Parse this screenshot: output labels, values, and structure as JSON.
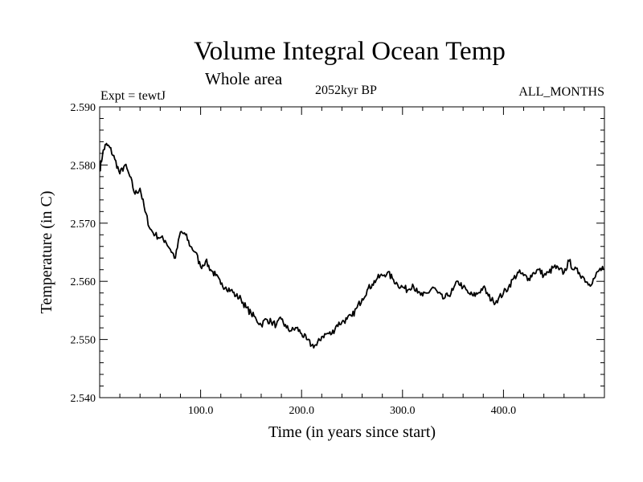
{
  "chart_data": {
    "type": "line",
    "title": "Volume Integral Ocean Temp",
    "subtitle": "Whole area",
    "left_label": "Expt = tewtJ",
    "center_label": "2052kyr BP",
    "right_label": "ALL_MONTHS",
    "xlabel": "Time (in years since start)",
    "ylabel": "Temperature (in C)",
    "xlim": [
      0,
      500
    ],
    "ylim": [
      2.54,
      2.59
    ],
    "x_ticks": [
      100,
      200,
      300,
      400
    ],
    "x_tick_labels": [
      "100.0",
      "200.0",
      "300.0",
      "400.0"
    ],
    "y_ticks": [
      2.54,
      2.55,
      2.56,
      2.57,
      2.58,
      2.59
    ],
    "y_tick_labels": [
      "2.540",
      "2.550",
      "2.560",
      "2.570",
      "2.580",
      "2.590"
    ],
    "series": [
      {
        "name": "Volume integral ocean temperature",
        "x": [
          0,
          3,
          6,
          10,
          15,
          20,
          25,
          30,
          35,
          40,
          45,
          50,
          55,
          60,
          65,
          70,
          75,
          80,
          85,
          90,
          95,
          100,
          105,
          110,
          115,
          120,
          125,
          130,
          135,
          140,
          145,
          150,
          155,
          160,
          165,
          170,
          175,
          180,
          185,
          190,
          195,
          200,
          205,
          210,
          215,
          220,
          225,
          230,
          235,
          240,
          245,
          250,
          255,
          260,
          265,
          270,
          275,
          280,
          285,
          290,
          295,
          300,
          305,
          310,
          315,
          320,
          325,
          330,
          335,
          340,
          345,
          350,
          355,
          360,
          365,
          370,
          375,
          380,
          385,
          390,
          395,
          400,
          405,
          410,
          415,
          420,
          425,
          430,
          435,
          440,
          445,
          450,
          455,
          460,
          465,
          470,
          475,
          480,
          485,
          490,
          495,
          499
        ],
        "y": [
          2.579,
          2.582,
          2.5835,
          2.583,
          2.581,
          2.5785,
          2.58,
          2.578,
          2.575,
          2.576,
          2.572,
          2.569,
          2.568,
          2.5675,
          2.567,
          2.5655,
          2.564,
          2.5685,
          2.568,
          2.566,
          2.565,
          2.5625,
          2.5635,
          2.562,
          2.561,
          2.5595,
          2.559,
          2.5585,
          2.5575,
          2.557,
          2.5555,
          2.5545,
          2.5535,
          2.5525,
          2.5535,
          2.553,
          2.5525,
          2.5535,
          2.552,
          2.5515,
          2.552,
          2.551,
          2.55,
          2.549,
          2.549,
          2.5505,
          2.551,
          2.551,
          2.5525,
          2.553,
          2.5535,
          2.554,
          2.5555,
          2.557,
          2.5585,
          2.5595,
          2.5605,
          2.561,
          2.5615,
          2.5605,
          2.5595,
          2.559,
          2.5585,
          2.5595,
          2.558,
          2.5575,
          2.558,
          2.559,
          2.558,
          2.557,
          2.5575,
          2.5585,
          2.56,
          2.559,
          2.558,
          2.5575,
          2.558,
          2.559,
          2.5575,
          2.5565,
          2.557,
          2.558,
          2.559,
          2.5605,
          2.5615,
          2.561,
          2.5605,
          2.5615,
          2.562,
          2.561,
          2.5615,
          2.5625,
          2.562,
          2.5615,
          2.5635,
          2.562,
          2.5615,
          2.5605,
          2.5595,
          2.5605,
          2.562,
          2.562
        ]
      }
    ]
  }
}
